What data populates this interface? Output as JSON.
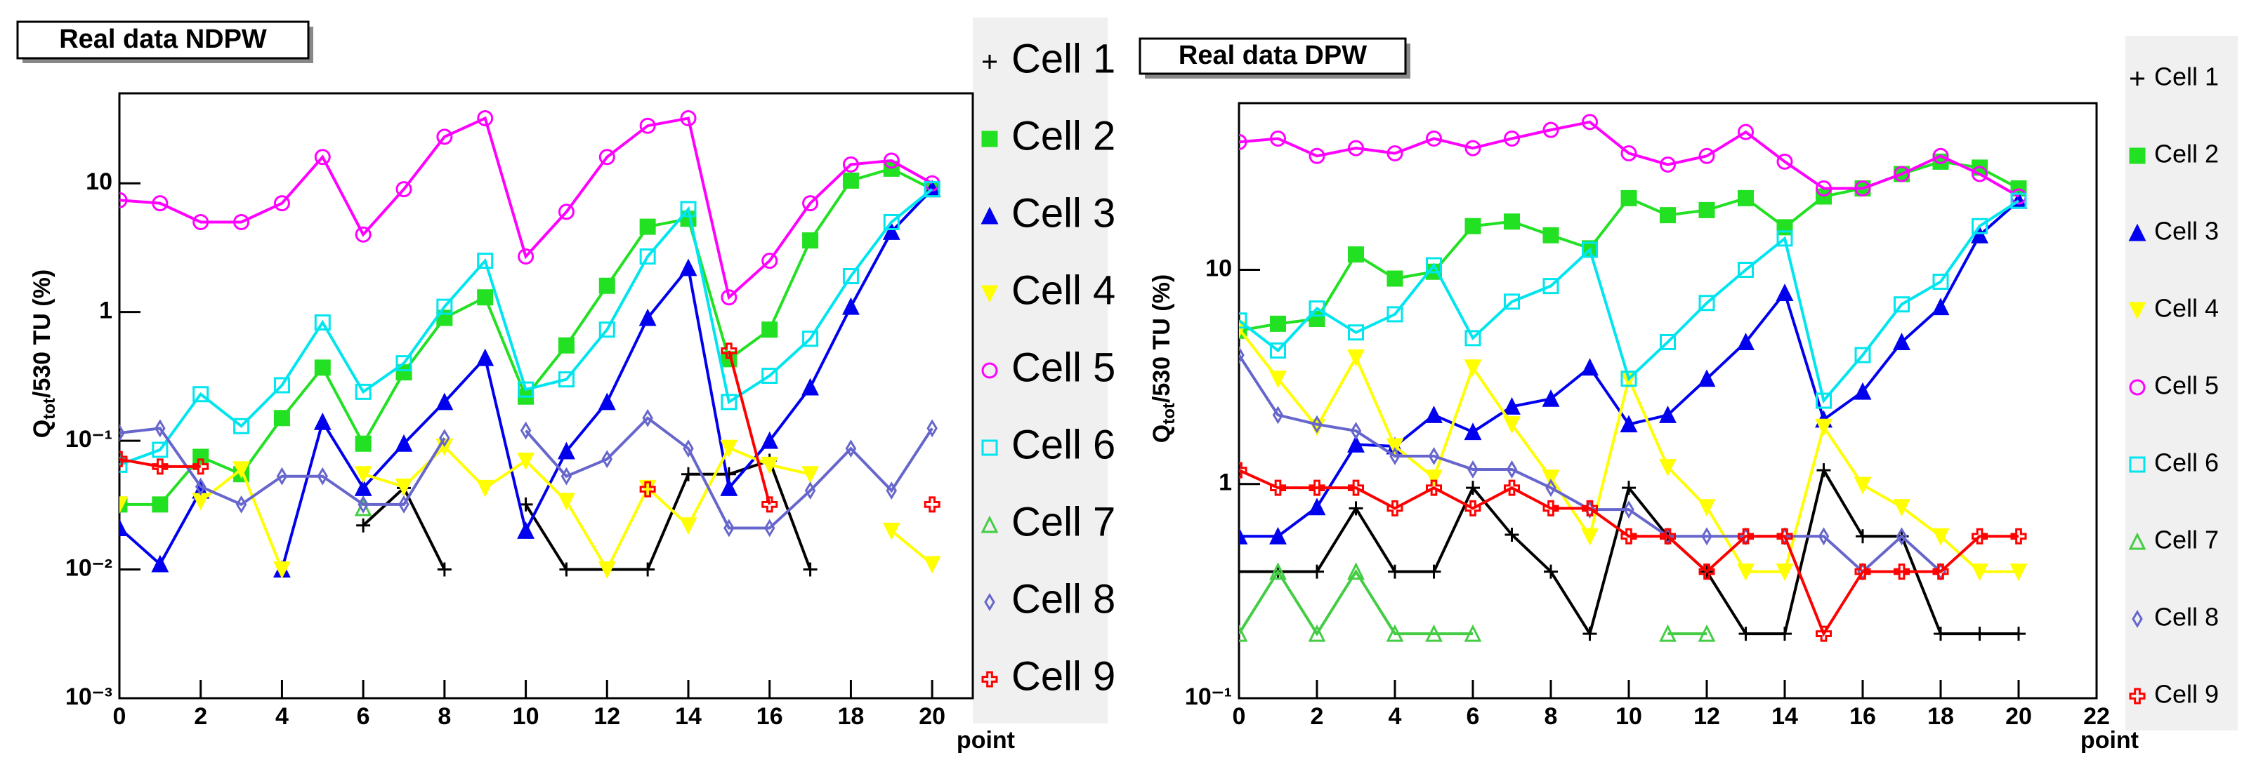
{
  "chart_data": [
    {
      "type": "line",
      "title": "Real data NDPW",
      "xlabel": "point",
      "ylabel_parts": [
        "Q",
        "tot",
        "/530 TU (%)"
      ],
      "log_y": true,
      "xlim": [
        0,
        21
      ],
      "xticks": [
        0,
        2,
        4,
        6,
        8,
        10,
        12,
        14,
        16,
        18,
        20
      ],
      "ylim": [
        0.001,
        50
      ],
      "yticks": [
        {
          "value": 0.001,
          "label": "10⁻³"
        },
        {
          "value": 0.01,
          "label": "10⁻²"
        },
        {
          "value": 0.1,
          "label": "10⁻¹"
        },
        1,
        10
      ],
      "x": [
        0,
        1,
        2,
        3,
        4,
        5,
        6,
        7,
        8,
        9,
        10,
        11,
        12,
        13,
        14,
        15,
        16,
        17,
        18,
        19,
        20
      ],
      "series": [
        {
          "name": "Cell 1",
          "color": "#000000",
          "marker": "plus",
          "values": [
            null,
            null,
            null,
            null,
            null,
            null,
            0.022,
            0.043,
            0.01,
            null,
            0.032,
            0.01,
            0.01,
            0.01,
            0.055,
            0.055,
            0.07,
            0.01,
            null,
            null,
            null
          ]
        },
        {
          "name": "Cell 2",
          "color": "#22e022",
          "marker": "square-filled",
          "values": [
            0.032,
            0.032,
            0.075,
            0.055,
            0.15,
            0.37,
            0.095,
            0.34,
            0.9,
            1.3,
            0.22,
            0.55,
            1.6,
            4.6,
            5.3,
            0.43,
            0.73,
            3.6,
            10.5,
            13,
            9
          ]
        },
        {
          "name": "Cell 3",
          "color": "#0000ee",
          "marker": "triangle-filled",
          "values": [
            0.021,
            0.011,
            0.041,
            null,
            0.01,
            0.14,
            0.043,
            0.095,
            0.2,
            0.44,
            0.02,
            0.083,
            0.2,
            0.9,
            2.2,
            0.043,
            0.1,
            0.26,
            1.1,
            4.2,
            9
          ]
        },
        {
          "name": "Cell 4",
          "color": "#ffff00",
          "marker": "triangle-down-filled",
          "values": [
            0.032,
            null,
            0.034,
            0.06,
            0.01,
            null,
            0.055,
            0.044,
            0.09,
            0.043,
            0.07,
            0.034,
            0.01,
            0.043,
            0.022,
            0.088,
            0.065,
            0.055,
            null,
            0.02,
            0.011
          ]
        },
        {
          "name": "Cell 5",
          "color": "#ff00ff",
          "marker": "circle-open",
          "values": [
            7.4,
            7,
            5,
            5,
            7,
            16,
            4,
            9,
            23,
            32,
            2.7,
            6,
            16,
            28,
            32,
            1.3,
            2.5,
            7,
            14,
            15,
            10
          ]
        },
        {
          "name": "Cell 6",
          "color": "#00e5ee",
          "marker": "square-open",
          "values": [
            0.065,
            0.085,
            0.23,
            0.13,
            0.27,
            0.83,
            0.24,
            0.4,
            1.1,
            2.5,
            0.25,
            0.3,
            0.73,
            2.7,
            6.3,
            0.2,
            0.32,
            0.62,
            1.9,
            5,
            9
          ]
        },
        {
          "name": "Cell 7",
          "color": "#44cc44",
          "marker": "triangle-open",
          "values": [
            null,
            null,
            null,
            null,
            null,
            null,
            0.03,
            null,
            null,
            null,
            null,
            null,
            null,
            null,
            null,
            null,
            null,
            null,
            null,
            null,
            null
          ]
        },
        {
          "name": "Cell 8",
          "color": "#6666cc",
          "marker": "diamond-open",
          "values": [
            0.115,
            0.125,
            0.044,
            0.032,
            0.053,
            0.053,
            0.032,
            0.032,
            0.105,
            null,
            0.12,
            0.053,
            0.072,
            0.15,
            0.087,
            0.021,
            0.021,
            0.041,
            0.087,
            0.041,
            0.125
          ]
        },
        {
          "name": "Cell 9",
          "color": "#ff0000",
          "marker": "cross-open",
          "values": [
            0.072,
            0.063,
            0.063,
            null,
            null,
            null,
            null,
            null,
            null,
            null,
            null,
            null,
            null,
            0.042,
            null,
            0.5,
            0.032,
            null,
            null,
            null,
            0.032
          ]
        }
      ]
    },
    {
      "type": "line",
      "title": "Real data DPW",
      "xlabel": "point",
      "ylabel_parts": [
        "Q",
        "tot",
        "/530 TU (%)"
      ],
      "log_y": true,
      "xlim": [
        0,
        22
      ],
      "xticks": [
        0,
        2,
        4,
        6,
        8,
        10,
        12,
        14,
        16,
        18,
        20,
        22
      ],
      "ylim": [
        0.1,
        60
      ],
      "yticks": [
        {
          "value": 0.1,
          "label": "10⁻¹"
        },
        1,
        10
      ],
      "x": [
        0,
        1,
        2,
        3,
        4,
        5,
        6,
        7,
        8,
        9,
        10,
        11,
        12,
        13,
        14,
        15,
        16,
        17,
        18,
        19,
        20
      ],
      "series": [
        {
          "name": "Cell 1",
          "color": "#000000",
          "marker": "plus",
          "values": [
            0.39,
            0.39,
            0.39,
            0.77,
            0.39,
            0.39,
            0.96,
            0.58,
            0.39,
            0.2,
            0.96,
            0.57,
            0.39,
            0.2,
            0.2,
            1.16,
            0.57,
            0.57,
            0.2,
            0.2,
            0.2
          ]
        },
        {
          "name": "Cell 2",
          "color": "#22e022",
          "marker": "square-filled",
          "values": [
            5.2,
            5.6,
            5.9,
            11.8,
            9.1,
            9.8,
            16,
            16.8,
            14.5,
            12.6,
            21.6,
            18,
            19,
            21.6,
            15.8,
            22,
            24,
            28,
            32,
            30,
            24
          ]
        },
        {
          "name": "Cell 3",
          "color": "#0000ee",
          "marker": "triangle-filled",
          "values": [
            0.57,
            0.57,
            0.78,
            1.53,
            1.5,
            2.1,
            1.75,
            2.3,
            2.5,
            3.5,
            1.9,
            2.1,
            3.1,
            4.6,
            7.8,
            2,
            2.7,
            4.6,
            6.7,
            14.5,
            21
          ]
        },
        {
          "name": "Cell 4",
          "color": "#ffff00",
          "marker": "triangle-down-filled",
          "values": [
            5.3,
            3.1,
            1.85,
            3.9,
            1.5,
            1.07,
            3.5,
            1.9,
            1.07,
            0.57,
            3.1,
            1.2,
            0.78,
            0.39,
            0.39,
            1.85,
            0.99,
            0.78,
            0.57,
            0.39,
            0.39
          ]
        },
        {
          "name": "Cell 5",
          "color": "#ff00ff",
          "marker": "circle-open",
          "values": [
            39.5,
            41,
            34,
            37,
            35,
            41,
            37,
            41,
            45,
            49,
            35,
            31,
            34,
            44,
            32,
            24,
            24,
            28,
            34,
            28,
            22
          ]
        },
        {
          "name": "Cell 6",
          "color": "#00e5ee",
          "marker": "square-open",
          "values": [
            5.8,
            4.2,
            6.6,
            5.1,
            6.2,
            10.5,
            4.8,
            7.1,
            8.4,
            12.4,
            3.1,
            4.6,
            7,
            10,
            14,
            2.45,
            4,
            6.9,
            8.8,
            16,
            21
          ]
        },
        {
          "name": "Cell 7",
          "color": "#44cc44",
          "marker": "triangle-open",
          "values": [
            0.2,
            0.39,
            0.2,
            0.39,
            0.2,
            0.2,
            0.2,
            null,
            null,
            null,
            null,
            0.2,
            0.2,
            null,
            null,
            null,
            null,
            null,
            null,
            null,
            null
          ]
        },
        {
          "name": "Cell 8",
          "color": "#6666cc",
          "marker": "diamond-open",
          "values": [
            4,
            2.1,
            1.9,
            1.77,
            1.35,
            1.35,
            1.17,
            1.17,
            0.96,
            0.76,
            0.76,
            0.57,
            0.57,
            0.57,
            0.57,
            0.57,
            0.39,
            0.57,
            0.39,
            null,
            null
          ]
        },
        {
          "name": "Cell 9",
          "color": "#ff0000",
          "marker": "cross-open",
          "values": [
            1.16,
            0.96,
            0.96,
            0.96,
            0.77,
            0.96,
            0.77,
            0.96,
            0.77,
            0.77,
            0.57,
            0.57,
            0.39,
            0.57,
            0.57,
            0.2,
            0.39,
            0.39,
            0.39,
            0.57,
            0.57
          ]
        }
      ]
    }
  ]
}
